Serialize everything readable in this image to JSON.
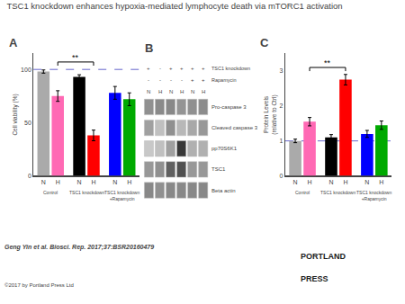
{
  "title": "TSC1 knockdown enhances hypoxia-mediated lymphocyte death via mTORC1 activation",
  "footnotes": [
    "Geng Yin et al. Biosci. Rep. 2017;37:BSR20160479",
    "©2017 by Portland Press Ltd"
  ],
  "logo": [
    "PORTLAND",
    "PRESS"
  ],
  "chart_data": [
    {
      "type": "bar",
      "label": "A",
      "categories": [
        "N",
        "H",
        "N",
        "H",
        "N",
        "H"
      ],
      "groups": [
        "Control",
        "TSC1 knockdown",
        "TSC1 knockdown\n+Rapamycin"
      ],
      "values": [
        98,
        75,
        93,
        38,
        78,
        72
      ],
      "errors": [
        1.5,
        5,
        2,
        5,
        6,
        6
      ],
      "colors": [
        "#aaaaaa",
        "#ff69b4",
        "#000000",
        "#ff0000",
        "#0000ff",
        "#00aa00"
      ],
      "ylabel": "Cell viability (%)",
      "ylim": [
        0,
        115
      ],
      "yticks": [
        0,
        50,
        100
      ],
      "grid": false,
      "reference_line": {
        "value": 100,
        "color": "#6666cc",
        "line_style": "dashed"
      },
      "annotations": [
        {
          "text": "**",
          "from": 1,
          "to": 3,
          "y": 107
        }
      ]
    },
    {
      "type": "blot",
      "label": "B",
      "categories": [
        "N",
        "H",
        "N",
        "H",
        "N",
        "H"
      ],
      "header_rows": [
        {
          "name": "TSC1 knockdown",
          "labels": [
            "+",
            "-",
            "+",
            "+",
            "+",
            "+"
          ]
        },
        {
          "name": "Rapamycin",
          "labels": [
            "-",
            "-",
            "-",
            "-",
            "+",
            "+"
          ]
        }
      ],
      "series": [
        {
          "name": "Pro-caspase 3",
          "colors": [
            "#909090",
            "#8a8a8a",
            "#888888",
            "#949494",
            "#909090",
            "#8c8c8c"
          ]
        },
        {
          "name": "Cleaved caspase 3",
          "colors": [
            "#a0a0a0",
            "#c0c0c0",
            "#909090",
            "#b8b8b8",
            "#a8a8a8",
            "#989898"
          ]
        },
        {
          "name": "pp70S6K1",
          "colors": [
            "#c8c8c8",
            "#c0c0c0",
            "#a0a0a0",
            "#383838",
            "#b0b0b0",
            "#b0b0b0"
          ]
        },
        {
          "name": "TSC1",
          "colors": [
            "#989898",
            "#909090",
            "#606060",
            "#505050",
            "#989898",
            "#989898"
          ]
        },
        {
          "name": "Beta actin",
          "colors": [
            "#888888",
            "#909090",
            "#888888",
            "#888888",
            "#888888",
            "#888888"
          ]
        }
      ]
    },
    {
      "type": "bar",
      "label": "C",
      "categories": [
        "N",
        "H",
        "N",
        "H",
        "N",
        "H"
      ],
      "groups": [
        "Control",
        "TSC1 knockdown",
        "TSC1 knockdown\n+Rapamycin"
      ],
      "values": [
        1.0,
        1.55,
        1.1,
        2.75,
        1.2,
        1.45
      ],
      "errors": [
        0.05,
        0.12,
        0.08,
        0.15,
        0.1,
        0.12
      ],
      "colors": [
        "#aaaaaa",
        "#ff69b4",
        "#000000",
        "#ff0000",
        "#0000ff",
        "#00aa00"
      ],
      "ylabel": "Protein Levels\n(relative to Ctrl)",
      "ylim": [
        0,
        3.5
      ],
      "yticks": [
        0,
        1,
        2,
        3
      ],
      "grid": false,
      "reference_line": {
        "value": 1.0,
        "color": "#6666cc",
        "line_style": "dashed"
      },
      "annotations": [
        {
          "text": "**",
          "from": 1,
          "to": 3,
          "y": 3.1
        }
      ]
    }
  ]
}
